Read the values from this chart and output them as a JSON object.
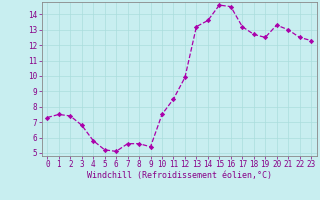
{
  "x": [
    0,
    1,
    2,
    3,
    4,
    5,
    6,
    7,
    8,
    9,
    10,
    11,
    12,
    13,
    14,
    15,
    16,
    17,
    18,
    19,
    20,
    21,
    22,
    23
  ],
  "y": [
    7.3,
    7.5,
    7.4,
    6.8,
    5.8,
    5.2,
    5.1,
    5.6,
    5.6,
    5.4,
    7.5,
    8.5,
    9.9,
    13.2,
    13.6,
    14.6,
    14.5,
    13.2,
    12.7,
    12.5,
    13.3,
    13.0,
    12.5,
    12.3
  ],
  "line_color": "#aa00aa",
  "marker": "D",
  "marker_size": 2.2,
  "bg_color": "#c8eef0",
  "grid_color": "#aadddd",
  "xlabel": "Windchill (Refroidissement éolien,°C)",
  "ylim": [
    4.8,
    14.8
  ],
  "xlim": [
    -0.5,
    23.5
  ],
  "yticks": [
    5,
    6,
    7,
    8,
    9,
    10,
    11,
    12,
    13,
    14
  ],
  "xticks": [
    0,
    1,
    2,
    3,
    4,
    5,
    6,
    7,
    8,
    9,
    10,
    11,
    12,
    13,
    14,
    15,
    16,
    17,
    18,
    19,
    20,
    21,
    22,
    23
  ],
  "axis_color": "#880088",
  "tick_fontsize": 5.5,
  "xlabel_fontsize": 6.0,
  "font_family": "monospace",
  "linewidth": 0.9,
  "spine_color": "#888888"
}
